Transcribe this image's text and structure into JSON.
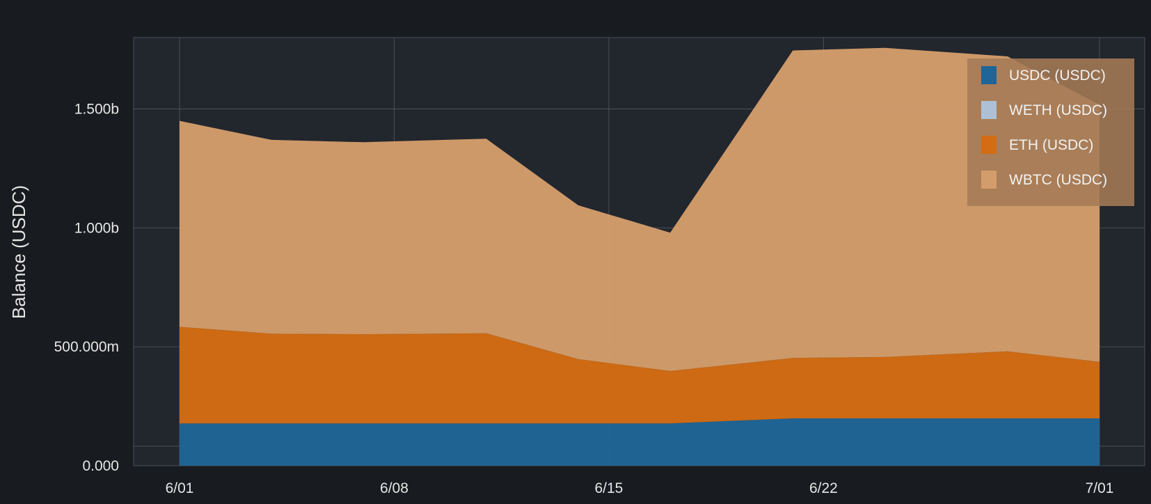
{
  "colors": {
    "background": "#181b1f",
    "plot_background": "#22262d",
    "grid": "#4a4f58",
    "text": "#e6e6e6",
    "legend_background": "#a47a55"
  },
  "chart_data": {
    "type": "area",
    "stacked": true,
    "ylabel": "Balance (USDC)",
    "xlabel": "",
    "x_unit": "date",
    "x": [
      "2021-06-01",
      "2021-06-04",
      "2021-06-07",
      "2021-06-11",
      "2021-06-14",
      "2021-06-17",
      "2021-06-21",
      "2021-06-24",
      "2021-06-28",
      "2021-07-01"
    ],
    "x_ticks": [
      "6/01",
      "6/08",
      "6/15",
      "6/22",
      "7/01"
    ],
    "x_tick_values": [
      "2021-06-01",
      "2021-06-08",
      "2021-06-15",
      "2021-06-22",
      "2021-07-01"
    ],
    "ylim": [
      0,
      1800000000
    ],
    "y_ticks": [
      0,
      500000000,
      1000000000,
      1500000000
    ],
    "y_tick_labels": [
      "0.000",
      "500.000m",
      "1.000b",
      "1.500b"
    ],
    "grid": true,
    "legend_position": "top-right",
    "series": [
      {
        "name": "USDC (USDC)",
        "color": "#1f6597",
        "values": [
          178000000,
          178000000,
          178000000,
          178000000,
          178000000,
          178000000,
          199000000,
          199000000,
          199000000,
          199000000
        ]
      },
      {
        "name": "WETH (USDC)",
        "color": "#aec0d6",
        "values": [
          0,
          0,
          0,
          0,
          0,
          0,
          0,
          0,
          0,
          0
        ]
      },
      {
        "name": "ETH (USDC)",
        "color": "#d36c13",
        "values": [
          406000000,
          377000000,
          375000000,
          379000000,
          270000000,
          220000000,
          254000000,
          258000000,
          282000000,
          238000000
        ]
      },
      {
        "name": "WBTC (USDC)",
        "color": "#d39d6b",
        "values": [
          866000000,
          815000000,
          807000000,
          818000000,
          647000000,
          582000000,
          1293000000,
          1300000000,
          1240000000,
          1081000000
        ]
      }
    ]
  }
}
